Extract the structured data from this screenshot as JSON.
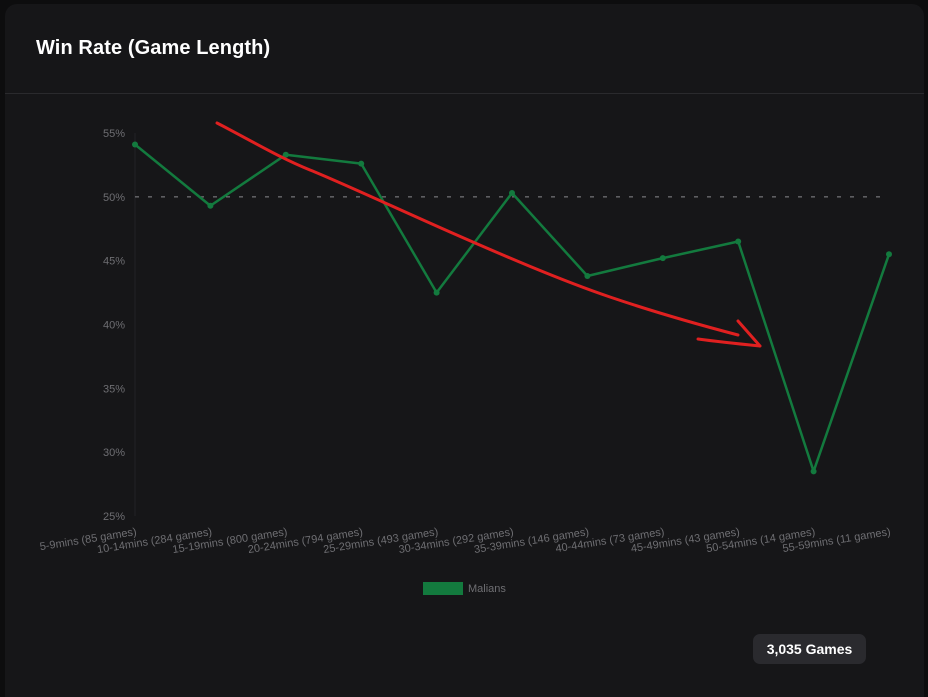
{
  "card": {
    "title": "Win Rate (Game Length)"
  },
  "total_games": "3,035 Games",
  "chart_data": {
    "type": "line",
    "title": "Win Rate (Game Length)",
    "categories": [
      "5-9mins (85 games)",
      "10-14mins (284 games)",
      "15-19mins (800 games)",
      "20-24mins (794 games)",
      "25-29mins (493 games)",
      "30-34mins (292 games)",
      "35-39mins (146 games)",
      "40-44mins (73 games)",
      "45-49mins (43 games)",
      "50-54mins (14 games)",
      "55-59mins (11 games)"
    ],
    "series": [
      {
        "name": "Malians",
        "color": "#137a3e",
        "values": [
          54.1,
          49.3,
          53.3,
          52.6,
          42.5,
          50.3,
          43.8,
          45.2,
          46.5,
          28.5,
          45.5
        ]
      }
    ],
    "ylim": [
      25,
      55
    ],
    "yticks": [
      25,
      30,
      35,
      40,
      45,
      50,
      55
    ],
    "ytick_labels": [
      "25%",
      "30%",
      "35%",
      "40%",
      "45%",
      "50%",
      "55%"
    ],
    "reference_line": 50,
    "legend_position": "bottom",
    "annotation": {
      "type": "trend-arrow",
      "color": "#e02020"
    }
  }
}
